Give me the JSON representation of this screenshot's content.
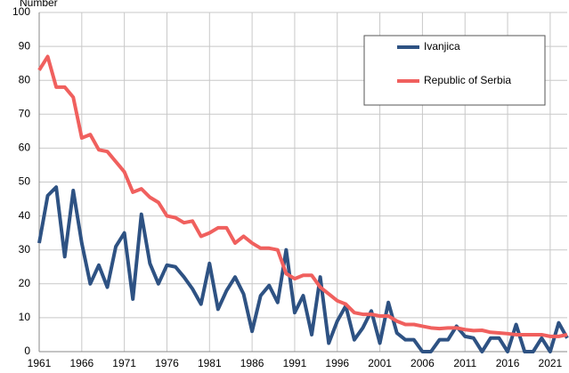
{
  "chart_data": {
    "type": "line",
    "y_label": "Number",
    "x": [
      1961,
      1962,
      1963,
      1964,
      1965,
      1966,
      1967,
      1968,
      1969,
      1970,
      1971,
      1972,
      1973,
      1974,
      1975,
      1976,
      1977,
      1978,
      1979,
      1980,
      1981,
      1982,
      1983,
      1984,
      1985,
      1986,
      1987,
      1988,
      1989,
      1990,
      1991,
      1992,
      1993,
      1994,
      1995,
      1996,
      1997,
      1998,
      1999,
      2000,
      2001,
      2002,
      2003,
      2004,
      2005,
      2006,
      2007,
      2008,
      2009,
      2010,
      2011,
      2012,
      2013,
      2014,
      2015,
      2016,
      2017,
      2018,
      2019,
      2020,
      2021,
      2022,
      2023
    ],
    "series": [
      {
        "name": "Ivanjica",
        "color": "#2e5283",
        "values": [
          32,
          46,
          48.5,
          28,
          47.5,
          32,
          20,
          25.5,
          19,
          31,
          35,
          15.5,
          40.5,
          26,
          20,
          25.5,
          25,
          22,
          18.5,
          14,
          26,
          12.5,
          18,
          22,
          17,
          6,
          16.5,
          19.5,
          14.5,
          30,
          11.5,
          16.5,
          5,
          22,
          2.5,
          9,
          13.5,
          3.5,
          7,
          12,
          2.5,
          14.5,
          5.5,
          3.5,
          3.5,
          0,
          0,
          3.5,
          3.5,
          7.5,
          4.5,
          4,
          0,
          4,
          4,
          0,
          8,
          0,
          0,
          4,
          0,
          8.5,
          4
        ]
      },
      {
        "name": "Republic of Serbia",
        "color": "#f0605e",
        "values": [
          83,
          87,
          78,
          78,
          75,
          63,
          64,
          59.5,
          59,
          56,
          53,
          47,
          48,
          45.5,
          44,
          40,
          39.5,
          38,
          38.5,
          34,
          35,
          36.5,
          36.5,
          32,
          34,
          32,
          30.5,
          30.5,
          30,
          23,
          21.5,
          22.5,
          22.5,
          19,
          17,
          15,
          14,
          11.5,
          11,
          11,
          10.5,
          10.5,
          9,
          8,
          8,
          7.5,
          7,
          6.8,
          7,
          7,
          6.5,
          6.2,
          6.3,
          5.7,
          5.5,
          5.3,
          5,
          5,
          5,
          5,
          4.5,
          4.5,
          5
        ]
      }
    ],
    "xlim": [
      1961,
      2023
    ],
    "xticks": [
      1961,
      1966,
      1971,
      1976,
      1981,
      1986,
      1991,
      1996,
      2001,
      2006,
      2011,
      2016,
      2021
    ],
    "ylim": [
      0,
      100
    ],
    "yticks": [
      0,
      10,
      20,
      30,
      40,
      50,
      60,
      70,
      80,
      90,
      100
    ],
    "grid": true,
    "legend": "upper right"
  }
}
